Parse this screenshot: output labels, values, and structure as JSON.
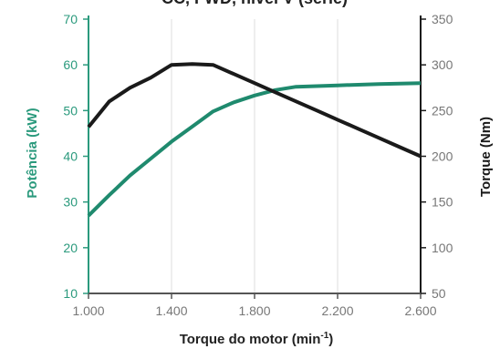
{
  "chart_data": {
    "type": "line",
    "title": "CC, FWD, nível V (série)",
    "xlabel": "Torque do motor (min",
    "xlabel_sup": "-1",
    "xlabel_end": ")",
    "ylabel_left": "Potência (kW)",
    "ylabel_right": "Torque (Nm)",
    "xlim": [
      1000,
      2600
    ],
    "ylim_left": [
      10,
      70
    ],
    "ylim_right": [
      50,
      350
    ],
    "x_ticks": [
      1000,
      1400,
      1800,
      2200,
      2600
    ],
    "x_tick_labels": [
      "1.000",
      "1.400",
      "1.800",
      "2.200",
      "2.600"
    ],
    "y_left_ticks": [
      10,
      20,
      30,
      40,
      50,
      60,
      70
    ],
    "y_left_tick_labels": [
      "10",
      "20",
      "30",
      "40",
      "50",
      "60",
      "70"
    ],
    "y_right_ticks": [
      50,
      100,
      150,
      200,
      250,
      300,
      350
    ],
    "y_right_tick_labels": [
      "50",
      "100",
      "150",
      "200",
      "250",
      "300",
      "350"
    ],
    "grid": "vertical",
    "series": [
      {
        "axis": "left",
        "color": "#1f8a6e",
        "x": [
          1000,
          1100,
          1200,
          1300,
          1400,
          1500,
          1600,
          1700,
          1800,
          1900,
          2000,
          2200,
          2400,
          2600
        ],
        "y": [
          27,
          31.5,
          35.8,
          39.5,
          43.2,
          46.5,
          49.8,
          51.8,
          53.3,
          54.5,
          55.2,
          55.5,
          55.8,
          56
        ]
      },
      {
        "axis": "right",
        "color": "#1a1a1a",
        "x": [
          1000,
          1100,
          1200,
          1300,
          1400,
          1500,
          1600,
          1700,
          1800,
          1900,
          2000,
          2100,
          2200,
          2300,
          2400,
          2500,
          2600
        ],
        "y": [
          232,
          260,
          275,
          286,
          300,
          301,
          300,
          290,
          280,
          270,
          260,
          250,
          240,
          230,
          220,
          210,
          200
        ]
      }
    ]
  },
  "colors": {
    "left_axis": "#2b9a7d",
    "right_axis": "#1a1a1a",
    "frame": "#555555",
    "grid": "#dddddd",
    "tick_text": "#777777"
  }
}
